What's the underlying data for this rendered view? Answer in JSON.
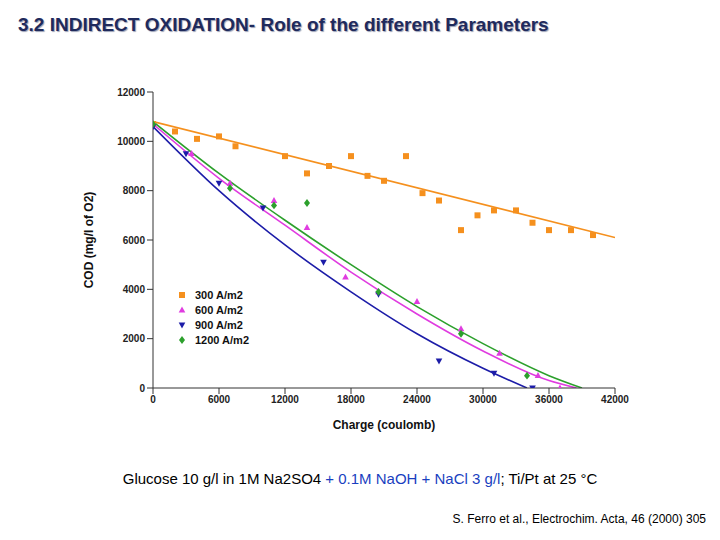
{
  "chart_data": {
    "type": "scatter",
    "title": "3.2 INDIRECT OXIDATION- Role of the different Parameters",
    "x_label": "Charge (coulomb)",
    "y_label": "COD (mg/l of O2)",
    "xlim": [
      0,
      42000
    ],
    "xticks": [
      0,
      6000,
      12000,
      18000,
      24000,
      30000,
      36000,
      42000
    ],
    "ylim": [
      0,
      12000
    ],
    "yticks": [
      0,
      2000,
      4000,
      6000,
      8000,
      10000,
      12000
    ],
    "grid": false,
    "legend": "lower left",
    "series": [
      {
        "name": "300 A/m2",
        "color": "#f5901e",
        "marker": "square",
        "x": [
          0,
          2000,
          4000,
          6000,
          7500,
          12000,
          14000,
          16000,
          18000,
          19500,
          21000,
          23000,
          24500,
          26000,
          28000,
          29500,
          31000,
          33000,
          34500,
          36000,
          38000,
          40000
        ],
        "values": [
          10700,
          10400,
          10100,
          10200,
          9800,
          9400,
          8700,
          9000,
          9400,
          8600,
          8400,
          9400,
          7900,
          7600,
          6400,
          7000,
          7200,
          7200,
          6700,
          6400,
          6400,
          6200
        ],
        "fit": {
          "x": [
            0,
            42000
          ],
          "values": [
            10800,
            6100
          ]
        }
      },
      {
        "name": "600 A/m2",
        "color": "#e03ce0",
        "marker": "triangle",
        "x": [
          0,
          3500,
          7000,
          11000,
          14000,
          17500,
          20500,
          24000,
          28000,
          31500,
          35000,
          37000
        ],
        "values": [
          10700,
          9500,
          8300,
          7600,
          6500,
          4500,
          3900,
          3500,
          2400,
          1400,
          500,
          0
        ],
        "fit": {
          "x": [
            0,
            6000,
            12000,
            18000,
            24000,
            30000,
            36000,
            38500
          ],
          "values": [
            10700,
            8500,
            6600,
            4700,
            3000,
            1500,
            300,
            0
          ]
        }
      },
      {
        "name": "900 A/m2",
        "color": "#1c1ca8",
        "marker": "triangle-down",
        "x": [
          0,
          3000,
          6000,
          10000,
          15500,
          20500,
          26000,
          31000,
          34500
        ],
        "values": [
          10600,
          9500,
          8300,
          7300,
          5100,
          3800,
          1100,
          600,
          0
        ],
        "fit": {
          "x": [
            0,
            6000,
            12000,
            18000,
            24000,
            30000,
            34000
          ],
          "values": [
            10600,
            8000,
            5800,
            3900,
            2200,
            800,
            0
          ]
        }
      },
      {
        "name": "1200 A/m2",
        "color": "#2ca02c",
        "marker": "diamond",
        "x": [
          0,
          7000,
          11000,
          14000,
          20500,
          28000,
          34000
        ],
        "values": [
          10700,
          8100,
          7400,
          7500,
          3900,
          2200,
          500
        ],
        "fit": {
          "x": [
            0,
            6000,
            12000,
            18000,
            24000,
            30000,
            36000,
            39000
          ],
          "values": [
            10800,
            8700,
            6800,
            5000,
            3300,
            1800,
            500,
            0
          ]
        }
      }
    ],
    "annotations": {
      "caption": [
        {
          "text": "Glucose 10 g/l in 1M Na2SO4",
          "color": "#000000"
        },
        {
          "text": " + 0.1M NaOH + NaCl 3 g/l",
          "color": "#1a3fbf"
        },
        {
          "text": "; Ti/Pt at 25 °C",
          "color": "#000000"
        }
      ],
      "citation": "S. Ferro et al., Electrochim. Acta, 46 (2000) 305"
    }
  }
}
